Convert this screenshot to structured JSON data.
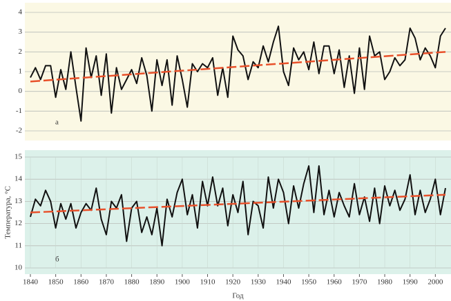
{
  "chart_data": [
    {
      "type": "line",
      "annotation": "а",
      "color": "#111111",
      "grid": true,
      "xlim": [
        1840,
        2004
      ],
      "ylim": [
        -2,
        4
      ],
      "yticks": [
        -2,
        -1,
        0,
        1,
        2,
        3,
        4
      ],
      "x": [
        1840,
        1842,
        1844,
        1846,
        1848,
        1850,
        1852,
        1854,
        1856,
        1858,
        1860,
        1862,
        1864,
        1866,
        1868,
        1870,
        1872,
        1874,
        1876,
        1878,
        1880,
        1882,
        1884,
        1886,
        1888,
        1890,
        1892,
        1894,
        1896,
        1898,
        1900,
        1902,
        1904,
        1906,
        1908,
        1910,
        1912,
        1914,
        1916,
        1918,
        1920,
        1922,
        1924,
        1926,
        1928,
        1930,
        1932,
        1934,
        1936,
        1938,
        1940,
        1942,
        1944,
        1946,
        1948,
        1950,
        1952,
        1954,
        1956,
        1958,
        1960,
        1962,
        1964,
        1966,
        1968,
        1970,
        1972,
        1974,
        1976,
        1978,
        1980,
        1982,
        1984,
        1986,
        1988,
        1990,
        1992,
        1994,
        1996,
        1998,
        2000,
        2002,
        2004
      ],
      "values": [
        0.7,
        1.2,
        0.6,
        1.3,
        1.3,
        -0.3,
        1.1,
        0.1,
        2.0,
        0.2,
        -1.5,
        2.2,
        0.7,
        1.8,
        -0.2,
        1.9,
        -1.1,
        1.2,
        0.1,
        0.6,
        1.1,
        0.4,
        1.7,
        0.8,
        -1.0,
        1.6,
        0.3,
        1.6,
        -0.7,
        1.8,
        0.6,
        -0.8,
        1.4,
        1.0,
        1.4,
        1.2,
        1.7,
        -0.2,
        1.2,
        -0.3,
        2.8,
        2.1,
        1.8,
        0.6,
        1.5,
        1.2,
        2.3,
        1.5,
        2.5,
        3.3,
        1.0,
        0.3,
        2.2,
        1.6,
        2.0,
        1.1,
        2.5,
        0.9,
        2.3,
        2.3,
        0.9,
        2.1,
        0.2,
        1.8,
        -0.1,
        2.2,
        0.1,
        2.8,
        1.8,
        2.0,
        0.6,
        1.0,
        1.7,
        1.3,
        1.6,
        3.2,
        2.7,
        1.6,
        2.2,
        1.8,
        1.2,
        2.8,
        3.2
      ],
      "trend": {
        "x": [
          1840,
          2004
        ],
        "values": [
          0.5,
          2.0
        ],
        "color": "#e8502a"
      }
    },
    {
      "type": "line",
      "annotation": "б",
      "color": "#111111",
      "grid": true,
      "y_label": "Температура, °C",
      "x_label": "Год",
      "xlim": [
        1840,
        2004
      ],
      "xticks": [
        1840,
        1850,
        1860,
        1870,
        1880,
        1890,
        1900,
        1910,
        1920,
        1930,
        1940,
        1950,
        1960,
        1970,
        1980,
        1990,
        2000
      ],
      "ylim": [
        10,
        15
      ],
      "yticks": [
        10,
        11,
        12,
        13,
        14,
        15
      ],
      "x": [
        1840,
        1842,
        1844,
        1846,
        1848,
        1850,
        1852,
        1854,
        1856,
        1858,
        1860,
        1862,
        1864,
        1866,
        1868,
        1870,
        1872,
        1874,
        1876,
        1878,
        1880,
        1882,
        1884,
        1886,
        1888,
        1890,
        1892,
        1894,
        1896,
        1898,
        1900,
        1902,
        1904,
        1906,
        1908,
        1910,
        1912,
        1914,
        1916,
        1918,
        1920,
        1922,
        1924,
        1926,
        1928,
        1930,
        1932,
        1934,
        1936,
        1938,
        1940,
        1942,
        1944,
        1946,
        1948,
        1950,
        1952,
        1954,
        1956,
        1958,
        1960,
        1962,
        1964,
        1966,
        1968,
        1970,
        1972,
        1974,
        1976,
        1978,
        1980,
        1982,
        1984,
        1986,
        1988,
        1990,
        1992,
        1994,
        1996,
        1998,
        2000,
        2002,
        2004
      ],
      "values": [
        12.3,
        13.1,
        12.8,
        13.5,
        13.0,
        11.8,
        12.9,
        12.2,
        12.9,
        11.8,
        12.5,
        12.9,
        12.6,
        13.6,
        12.2,
        11.5,
        13.0,
        12.7,
        13.3,
        11.2,
        12.7,
        13.0,
        11.6,
        12.3,
        11.5,
        12.7,
        11.0,
        13.1,
        12.3,
        13.4,
        14.0,
        12.4,
        13.3,
        11.8,
        13.9,
        12.8,
        14.1,
        12.8,
        13.6,
        11.9,
        13.3,
        12.5,
        13.9,
        11.5,
        13.0,
        12.8,
        11.8,
        14.1,
        12.7,
        14.0,
        13.4,
        12.0,
        13.7,
        12.7,
        13.8,
        14.6,
        12.5,
        14.6,
        12.4,
        13.5,
        12.3,
        13.4,
        12.8,
        12.3,
        13.8,
        12.4,
        13.2,
        12.1,
        13.6,
        12.0,
        13.7,
        12.8,
        13.5,
        12.6,
        13.1,
        14.2,
        12.4,
        13.5,
        12.5,
        13.1,
        14.0,
        12.4,
        13.6
      ],
      "trend": {
        "x": [
          1840,
          2004
        ],
        "values": [
          12.5,
          13.3
        ],
        "color": "#e8502a"
      }
    }
  ]
}
